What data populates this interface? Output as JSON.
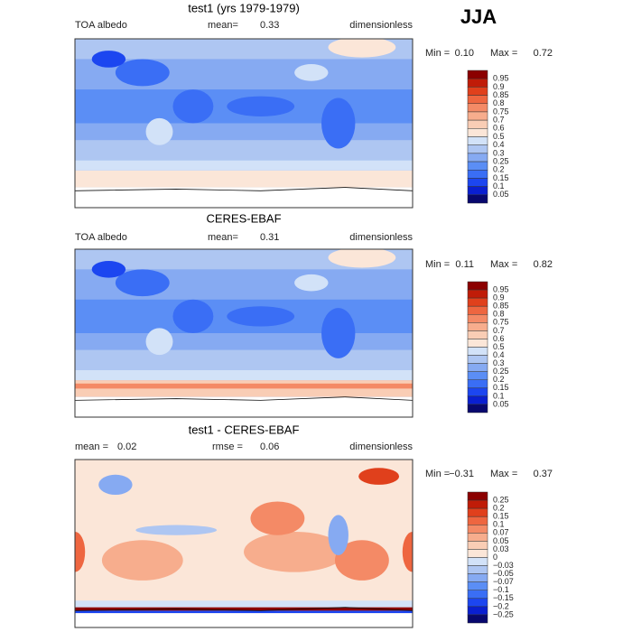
{
  "season": "JJA",
  "panels": [
    {
      "title": "test1 (yrs 1979-1979)",
      "left_label": "TOA albedo",
      "stat1_label": "mean=",
      "stat1": "0.33",
      "stat2_label": null,
      "stat2": null,
      "units": "dimensionless",
      "min_label": "Min =",
      "min": "0.10",
      "max_label": "Max =",
      "max": "0.72",
      "levels": [
        "0.95",
        "0.9",
        "0.85",
        "0.8",
        "0.75",
        "0.7",
        "0.6",
        "0.5",
        "0.4",
        "0.3",
        "0.25",
        "0.2",
        "0.15",
        "0.1",
        "0.05"
      ],
      "colors": [
        "#8b0000",
        "#c01c08",
        "#e0401c",
        "#ee6640",
        "#f48a66",
        "#f7ad8d",
        "#f9cdb5",
        "#fbe6d8",
        "#d2e2f8",
        "#aec6f2",
        "#86aaf2",
        "#5b8ef5",
        "#3a6ef5",
        "#1c46f0",
        "#0a1fd0",
        "#08086e"
      ]
    },
    {
      "title": "CERES-EBAF",
      "left_label": "TOA albedo",
      "stat1_label": "mean=",
      "stat1": "0.31",
      "stat2_label": null,
      "stat2": null,
      "units": "dimensionless",
      "min_label": "Min =",
      "min": "0.11",
      "max_label": "Max =",
      "max": "0.82",
      "levels": [
        "0.95",
        "0.9",
        "0.85",
        "0.8",
        "0.75",
        "0.7",
        "0.6",
        "0.5",
        "0.4",
        "0.3",
        "0.25",
        "0.2",
        "0.15",
        "0.1",
        "0.05"
      ],
      "colors": [
        "#8b0000",
        "#c01c08",
        "#e0401c",
        "#ee6640",
        "#f48a66",
        "#f7ad8d",
        "#f9cdb5",
        "#fbe6d8",
        "#d2e2f8",
        "#aec6f2",
        "#86aaf2",
        "#5b8ef5",
        "#3a6ef5",
        "#1c46f0",
        "#0a1fd0",
        "#08086e"
      ]
    },
    {
      "title": "test1 - CERES-EBAF",
      "left_label": null,
      "stat1_label": "mean =",
      "stat1": "0.02",
      "stat2_label": "rmse =",
      "stat2": "0.06",
      "units": "dimensionless",
      "min_label": "Min =",
      "min": "−0.31",
      "max_label": "Max =",
      "max": "0.37",
      "levels": [
        "0.25",
        "0.2",
        "0.15",
        "0.1",
        "0.07",
        "0.05",
        "0.03",
        "0",
        "−0.03",
        "−0.05",
        "−0.07",
        "−0.1",
        "−0.15",
        "−0.2",
        "−0.25"
      ],
      "colors": [
        "#8b0000",
        "#c01c08",
        "#e0401c",
        "#ee6640",
        "#f48a66",
        "#f7ad8d",
        "#f9cdb5",
        "#fbe6d8",
        "#d2e2f8",
        "#aec6f2",
        "#86aaf2",
        "#5b8ef5",
        "#3a6ef5",
        "#1c46f0",
        "#0a1fd0",
        "#08086e"
      ]
    }
  ]
}
